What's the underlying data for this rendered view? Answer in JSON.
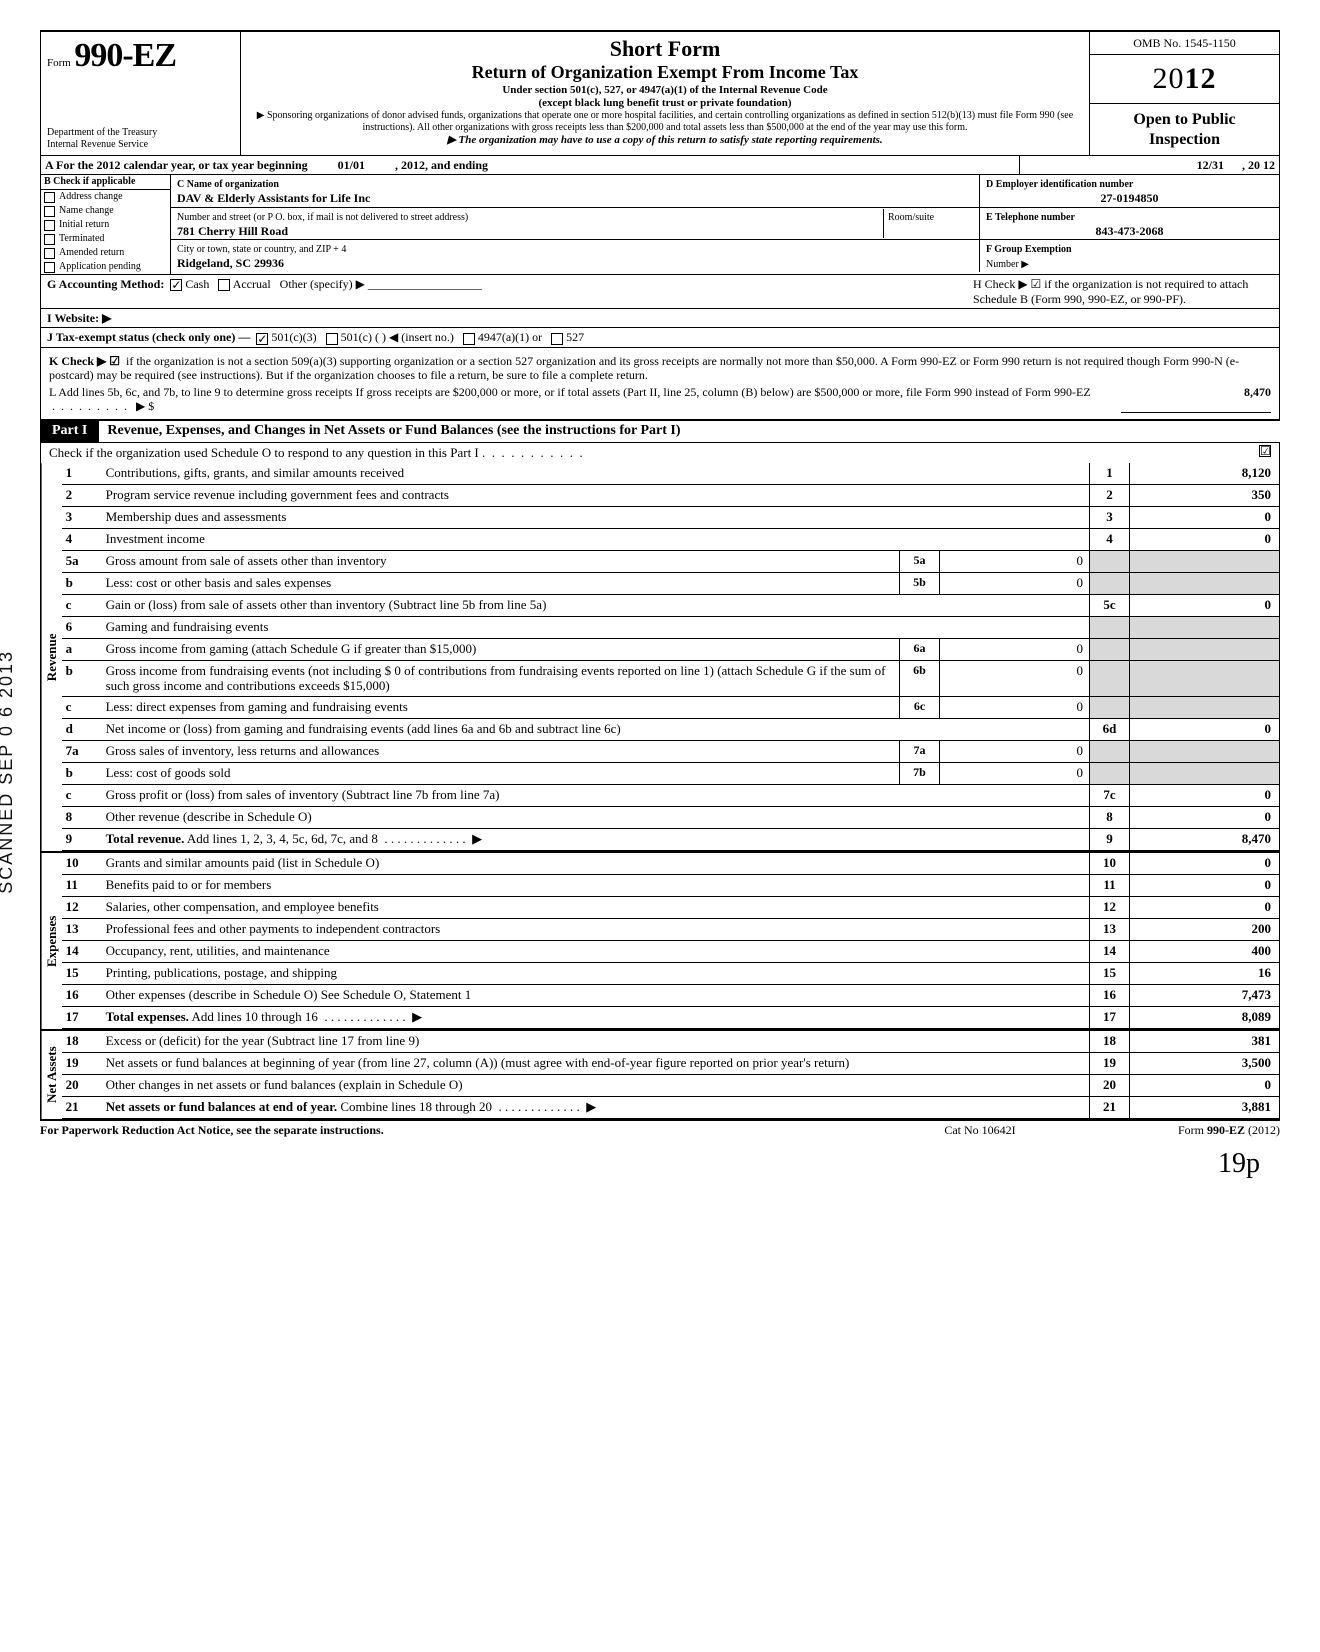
{
  "form": {
    "label": "Form",
    "number": "990-EZ",
    "dept1": "Department of the Treasury",
    "dept2": "Internal Revenue Service",
    "title1": "Short Form",
    "title2": "Return of Organization Exempt From Income Tax",
    "sub1": "Under section 501(c), 527, or 4947(a)(1) of the Internal Revenue Code",
    "sub2": "(except black lung benefit trust or private foundation)",
    "sub3": "▶ Sponsoring organizations of donor advised funds, organizations that operate one or more hospital facilities, and certain controlling organizations as defined in section 512(b)(13) must file Form 990 (see instructions). All other organizations with gross receipts less than $200,000 and total assets less than $500,000 at the end of the year may use this form.",
    "sub4": "▶ The organization may have to use a copy of this return to satisfy state reporting requirements.",
    "omb": "OMB No. 1545-1150",
    "year": "2012",
    "open1": "Open to Public",
    "open2": "Inspection"
  },
  "lineA": {
    "text_l": "A For the 2012 calendar year, or tax year beginning",
    "begin": "01/01",
    "mid": ", 2012, and ending",
    "end": "12/31",
    "tail": ", 20   12"
  },
  "B": {
    "header": "B  Check if applicable",
    "opts": [
      "Address change",
      "Name change",
      "Initial return",
      "Terminated",
      "Amended return",
      "Application pending"
    ]
  },
  "C": {
    "name_label": "C  Name of organization",
    "name": "DAV & Elderly Assistants for Life Inc",
    "addr_label": "Number and street (or P O. box, if mail is not delivered to street address)",
    "room_label": "Room/suite",
    "addr": "781 Cherry Hill Road",
    "city_label": "City or town, state or country, and ZIP + 4",
    "city": "Ridgeland, SC 29936"
  },
  "D": {
    "label": "D Employer identification number",
    "value": "27-0194850"
  },
  "E": {
    "label": "E Telephone number",
    "value": "843-473-2068"
  },
  "F": {
    "label": "F Group Exemption",
    "label2": "Number ▶",
    "value": ""
  },
  "G": {
    "label": "G  Accounting Method:",
    "cash": "Cash",
    "accrual": "Accrual",
    "other": "Other (specify) ▶"
  },
  "H": {
    "text": "H  Check ▶ ☑ if the organization is not required to attach Schedule B (Form 990, 990-EZ, or 990-PF)."
  },
  "I": {
    "label": "I   Website: ▶"
  },
  "J": {
    "label": "J  Tax-exempt status (check only one) —",
    "a": "501(c)(3)",
    "b": "501(c) (       )  ◀ (insert no.)",
    "c": "4947(a)(1) or",
    "d": "527"
  },
  "K": {
    "lead": "K  Check ▶  ☑",
    "text": "if the organization is not a section 509(a)(3) supporting organization or a section 527 organization and its gross receipts are normally not more than $50,000. A Form 990-EZ or Form 990 return is not required though Form 990-N (e-postcard) may be required (see instructions). But if the organization chooses to file a return, be sure to file a complete return."
  },
  "L": {
    "text": "L  Add lines 5b, 6c, and 7b, to line 9 to determine gross receipts  If gross receipts are $200,000 or more, or if total assets (Part II, line 25, column (B) below) are $500,000 or more, file Form 990 instead of Form 990-EZ",
    "arrow": "▶  $",
    "value": "8,470"
  },
  "part1": {
    "tab": "Part I",
    "title": "Revenue, Expenses, and Changes in Net Assets or Fund Balances (see the instructions for Part I)",
    "check_line": "Check if the organization used Schedule O to respond to any question in this Part I",
    "checked": "☑"
  },
  "stamp": "SCANNED  SEP  0 6  2013",
  "sections": [
    {
      "label": "Revenue",
      "rows": [
        {
          "n": "1",
          "desc": "Contributions, gifts, grants, and similar amounts received",
          "cn": "1",
          "val": "8,120"
        },
        {
          "n": "2",
          "desc": "Program service revenue including government fees and contracts",
          "cn": "2",
          "val": "350"
        },
        {
          "n": "3",
          "desc": "Membership dues and assessments",
          "cn": "3",
          "val": "0"
        },
        {
          "n": "4",
          "desc": "Investment income",
          "cn": "4",
          "val": "0"
        },
        {
          "n": "5a",
          "desc": "Gross amount from sale of assets other than inventory",
          "mn": "5a",
          "mv": "0",
          "shade": true
        },
        {
          "n": "b",
          "desc": "Less: cost or other basis and sales expenses",
          "mn": "5b",
          "mv": "0",
          "shade": true
        },
        {
          "n": "c",
          "desc": "Gain or (loss) from sale of assets other than inventory (Subtract line 5b from line 5a)",
          "cn": "5c",
          "val": "0"
        },
        {
          "n": "6",
          "desc": "Gaming and fundraising events",
          "shade": true,
          "noval": true
        },
        {
          "n": "a",
          "desc": "Gross income from gaming (attach Schedule G if greater than $15,000)",
          "mn": "6a",
          "mv": "0",
          "shade": true
        },
        {
          "n": "b",
          "desc": "Gross income from fundraising events (not including  $                0 of contributions from fundraising events reported on line 1) (attach Schedule G if the sum of such gross income and contributions exceeds $15,000)",
          "mn": "6b",
          "mv": "0",
          "shade": true
        },
        {
          "n": "c",
          "desc": "Less: direct expenses from gaming and fundraising events",
          "mn": "6c",
          "mv": "0",
          "shade": true
        },
        {
          "n": "d",
          "desc": "Net income or (loss) from gaming and fundraising events (add lines 6a and 6b and subtract line 6c)",
          "cn": "6d",
          "val": "0"
        },
        {
          "n": "7a",
          "desc": "Gross sales of inventory, less returns and allowances",
          "mn": "7a",
          "mv": "0",
          "shade": true
        },
        {
          "n": "b",
          "desc": "Less: cost of goods sold",
          "mn": "7b",
          "mv": "0",
          "shade": true
        },
        {
          "n": "c",
          "desc": "Gross profit or (loss) from sales of inventory (Subtract line 7b from line 7a)",
          "cn": "7c",
          "val": "0"
        },
        {
          "n": "8",
          "desc": "Other revenue (describe in Schedule O)",
          "cn": "8",
          "val": "0"
        },
        {
          "n": "9",
          "desc": "Total revenue. Add lines 1, 2, 3, 4, 5c, 6d, 7c, and 8",
          "cn": "9",
          "val": "8,470",
          "bold": true,
          "arrow": true
        }
      ]
    },
    {
      "label": "Expenses",
      "rows": [
        {
          "n": "10",
          "desc": "Grants and similar amounts paid (list in Schedule O)",
          "cn": "10",
          "val": "0"
        },
        {
          "n": "11",
          "desc": "Benefits paid to or for members",
          "cn": "11",
          "val": "0"
        },
        {
          "n": "12",
          "desc": "Salaries, other compensation, and employee benefits",
          "cn": "12",
          "val": "0"
        },
        {
          "n": "13",
          "desc": "Professional fees and other payments to independent contractors",
          "cn": "13",
          "val": "200"
        },
        {
          "n": "14",
          "desc": "Occupancy, rent, utilities, and maintenance",
          "cn": "14",
          "val": "400"
        },
        {
          "n": "15",
          "desc": "Printing, publications, postage, and shipping",
          "cn": "15",
          "val": "16"
        },
        {
          "n": "16",
          "desc": "Other expenses (describe in Schedule O)  See Schedule O, Statement 1",
          "cn": "16",
          "val": "7,473"
        },
        {
          "n": "17",
          "desc": "Total expenses. Add lines 10 through 16",
          "cn": "17",
          "val": "8,089",
          "bold": true,
          "arrow": true
        }
      ]
    },
    {
      "label": "Net Assets",
      "rows": [
        {
          "n": "18",
          "desc": "Excess or (deficit) for the year (Subtract line 17 from line 9)",
          "cn": "18",
          "val": "381"
        },
        {
          "n": "19",
          "desc": "Net assets or fund balances at beginning of year (from line 27, column (A)) (must agree with end-of-year figure reported on prior year's return)",
          "cn": "19",
          "val": "3,500"
        },
        {
          "n": "20",
          "desc": "Other changes in net assets or fund balances (explain in Schedule O)",
          "cn": "20",
          "val": "0"
        },
        {
          "n": "21",
          "desc": "Net assets or fund balances at end of year. Combine lines 18 through 20",
          "cn": "21",
          "val": "3,881",
          "bold": true,
          "arrow": true
        }
      ]
    }
  ],
  "footer": {
    "l": "For Paperwork Reduction Act Notice, see the separate instructions.",
    "m": "Cat No  10642I",
    "r": "Form 990-EZ (2012)"
  },
  "handwritten": "19p"
}
